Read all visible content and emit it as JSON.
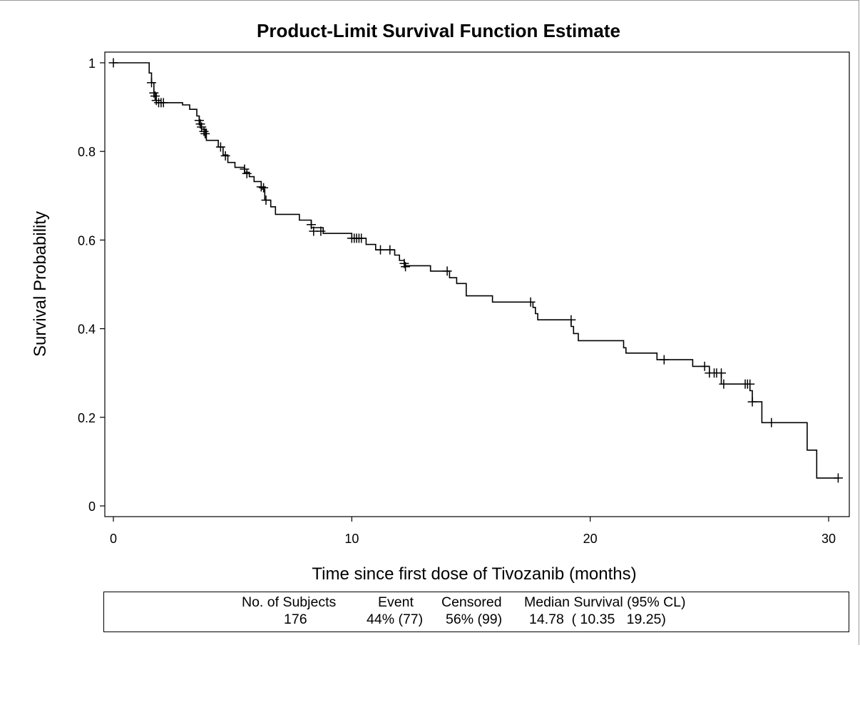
{
  "chart_data": {
    "type": "line",
    "subtype": "kaplan-meier step function",
    "title": "Product-Limit Survival Function Estimate",
    "xlabel": "Time since first dose of Tivozanib (months)",
    "ylabel": "Survival Probability",
    "xlim": [
      0,
      31
    ],
    "ylim": [
      0,
      1
    ],
    "xticks": [
      0,
      10,
      20,
      30
    ],
    "yticks": [
      0,
      0.2,
      0.4,
      0.6,
      0.8,
      1
    ],
    "ytick_labels": [
      "0",
      "0.2",
      "0.4",
      "0.6",
      "0.8",
      "1"
    ],
    "grid": false,
    "legend": "none",
    "line_color": "#000000",
    "step_curve": [
      [
        0,
        1.0
      ],
      [
        1.5,
        0.977
      ],
      [
        1.6,
        0.955
      ],
      [
        1.7,
        0.932
      ],
      [
        1.8,
        0.91
      ],
      [
        2.3,
        0.91
      ],
      [
        2.9,
        0.905
      ],
      [
        3.2,
        0.895
      ],
      [
        3.5,
        0.88
      ],
      [
        3.6,
        0.86
      ],
      [
        3.7,
        0.85
      ],
      [
        3.9,
        0.825
      ],
      [
        4.4,
        0.81
      ],
      [
        4.6,
        0.792
      ],
      [
        4.8,
        0.775
      ],
      [
        5.1,
        0.764
      ],
      [
        5.5,
        0.753
      ],
      [
        5.7,
        0.743
      ],
      [
        5.9,
        0.732
      ],
      [
        6.2,
        0.715
      ],
      [
        6.35,
        0.69
      ],
      [
        6.6,
        0.675
      ],
      [
        6.8,
        0.658
      ],
      [
        7.8,
        0.645
      ],
      [
        8.3,
        0.628
      ],
      [
        8.8,
        0.615
      ],
      [
        10.0,
        0.604
      ],
      [
        10.6,
        0.59
      ],
      [
        11.0,
        0.578
      ],
      [
        11.8,
        0.566
      ],
      [
        12.0,
        0.554
      ],
      [
        12.2,
        0.542
      ],
      [
        13.3,
        0.53
      ],
      [
        14.1,
        0.515
      ],
      [
        14.4,
        0.502
      ],
      [
        14.8,
        0.474
      ],
      [
        15.9,
        0.46
      ],
      [
        17.6,
        0.448
      ],
      [
        17.7,
        0.434
      ],
      [
        17.8,
        0.42
      ],
      [
        19.2,
        0.405
      ],
      [
        19.3,
        0.389
      ],
      [
        19.5,
        0.373
      ],
      [
        21.4,
        0.357
      ],
      [
        21.5,
        0.345
      ],
      [
        22.8,
        0.33
      ],
      [
        24.3,
        0.315
      ],
      [
        25.0,
        0.3
      ],
      [
        25.5,
        0.275
      ],
      [
        26.7,
        0.26
      ],
      [
        26.8,
        0.235
      ],
      [
        27.2,
        0.188
      ],
      [
        29.1,
        0.126
      ],
      [
        29.5,
        0.063
      ],
      [
        30.4,
        0.063
      ]
    ],
    "censored_points": [
      [
        0.0,
        1.0
      ],
      [
        1.6,
        0.955
      ],
      [
        1.7,
        0.932
      ],
      [
        1.75,
        0.925
      ],
      [
        1.8,
        0.915
      ],
      [
        1.9,
        0.91
      ],
      [
        2.0,
        0.91
      ],
      [
        2.1,
        0.91
      ],
      [
        3.6,
        0.87
      ],
      [
        3.65,
        0.862
      ],
      [
        3.7,
        0.855
      ],
      [
        3.8,
        0.845
      ],
      [
        3.85,
        0.84
      ],
      [
        4.5,
        0.81
      ],
      [
        4.7,
        0.79
      ],
      [
        5.5,
        0.76
      ],
      [
        5.6,
        0.75
      ],
      [
        6.2,
        0.72
      ],
      [
        6.3,
        0.718
      ],
      [
        6.4,
        0.69
      ],
      [
        8.3,
        0.635
      ],
      [
        8.4,
        0.62
      ],
      [
        8.7,
        0.62
      ],
      [
        10.0,
        0.604
      ],
      [
        10.1,
        0.604
      ],
      [
        10.2,
        0.604
      ],
      [
        10.3,
        0.604
      ],
      [
        10.4,
        0.604
      ],
      [
        11.2,
        0.578
      ],
      [
        11.6,
        0.578
      ],
      [
        12.2,
        0.547
      ],
      [
        12.25,
        0.54
      ],
      [
        14.0,
        0.53
      ],
      [
        17.5,
        0.46
      ],
      [
        19.2,
        0.42
      ],
      [
        23.1,
        0.33
      ],
      [
        24.8,
        0.315
      ],
      [
        25.0,
        0.3
      ],
      [
        25.2,
        0.3
      ],
      [
        25.3,
        0.3
      ],
      [
        25.5,
        0.3
      ],
      [
        25.6,
        0.275
      ],
      [
        26.5,
        0.275
      ],
      [
        26.6,
        0.275
      ],
      [
        26.7,
        0.275
      ],
      [
        26.8,
        0.235
      ],
      [
        27.6,
        0.188
      ],
      [
        30.4,
        0.063
      ]
    ],
    "summary_table": {
      "headers": [
        "No. of Subjects",
        "Event",
        "Censored",
        "Median Survival (95% CL)"
      ],
      "values": [
        "176",
        "44% (77)",
        "56% (99)",
        "14.78  ( 10.35   19.25)"
      ]
    }
  }
}
